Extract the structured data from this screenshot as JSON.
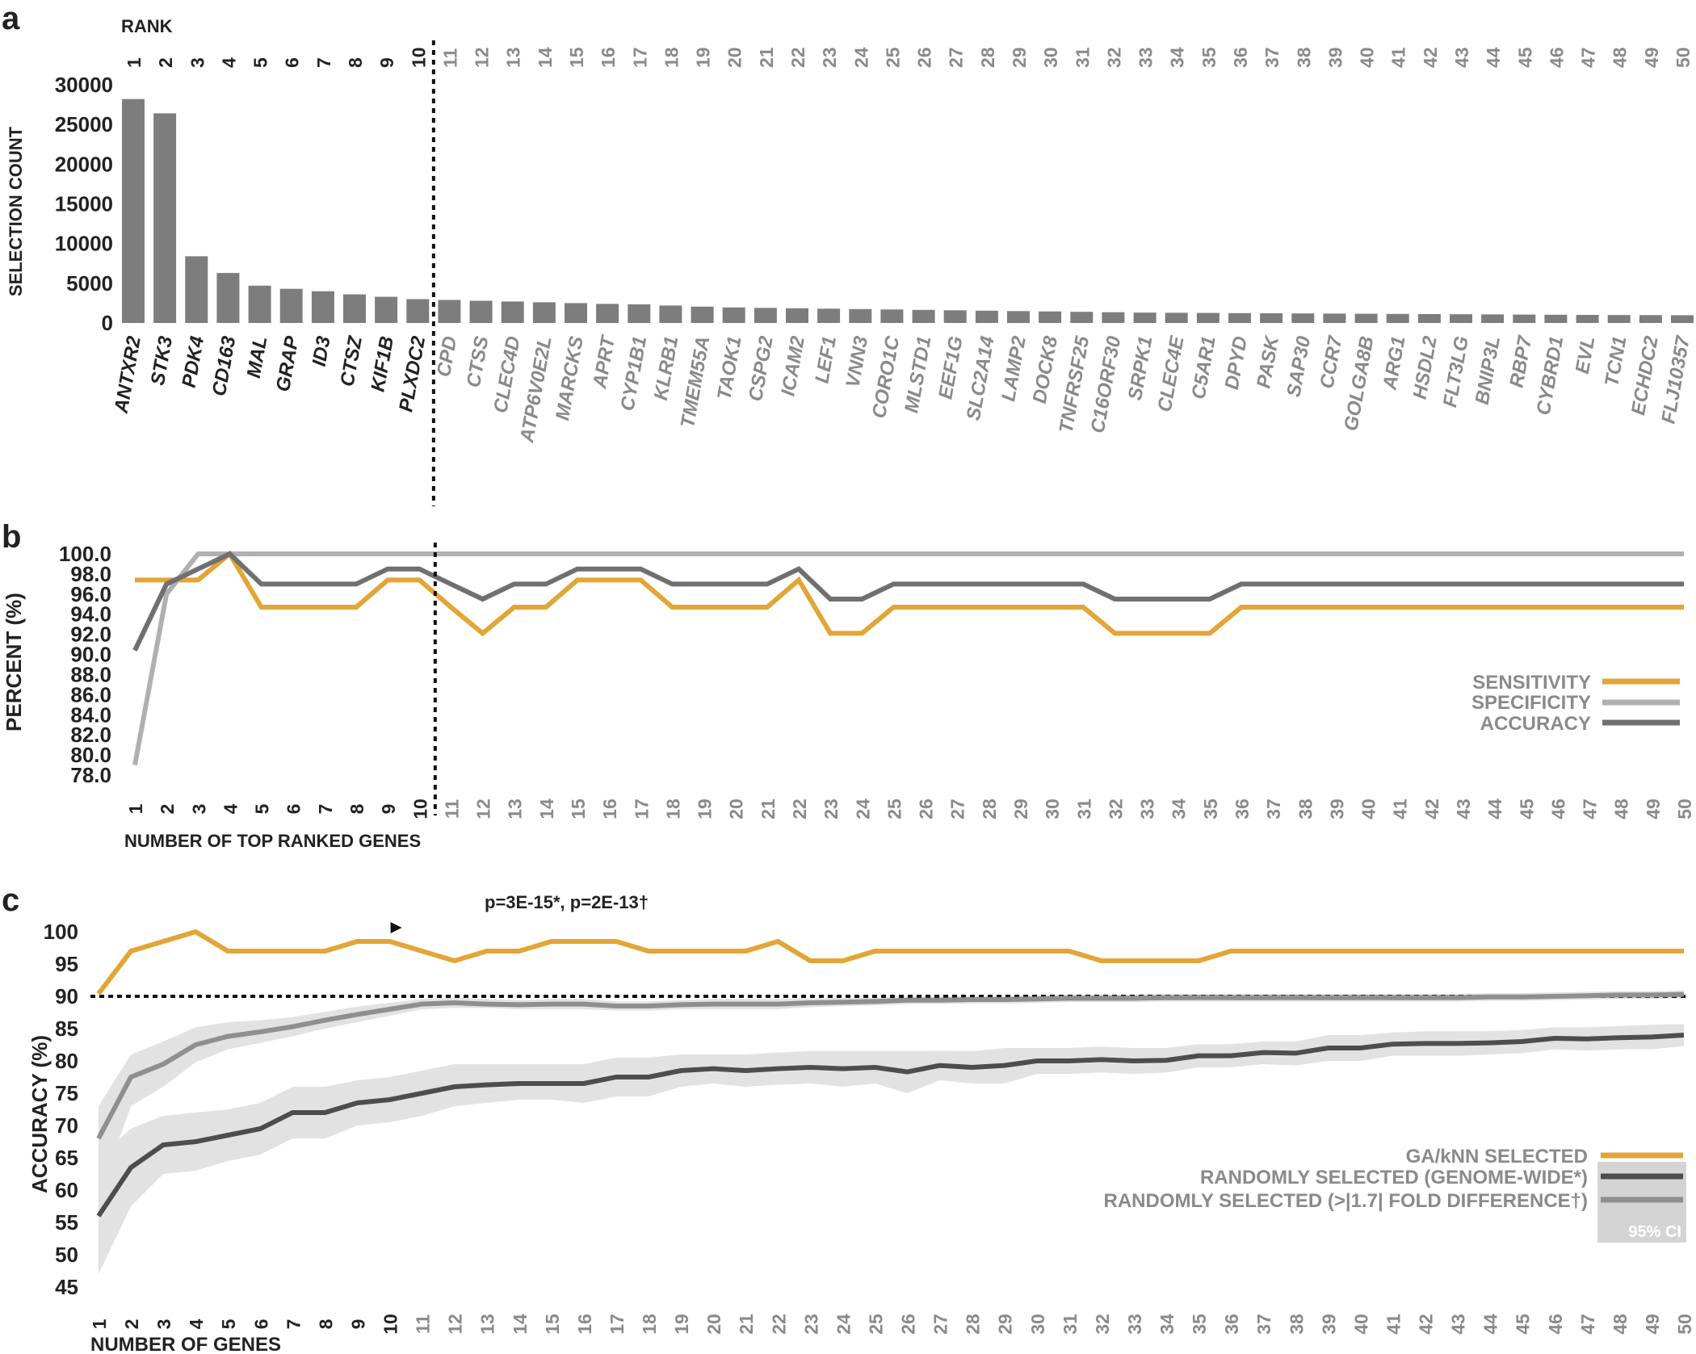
{
  "colors": {
    "bar": "#7d7d7d",
    "orange": "#e3a536",
    "light_gray": "#b0b0b0",
    "dark_gray": "#707070",
    "rand_dark": "#4d4d4d",
    "rand_mid": "#8f8f8f",
    "ci": "#e2e2e2",
    "ci_legend": "#d4d4d4",
    "gene_gray": "#8a8a8a",
    "text": "#222222"
  },
  "panels": {
    "a": {
      "letter": "a",
      "rank_title": "RANK",
      "ylabel": "SELECTION COUNT"
    },
    "b": {
      "letter": "b",
      "ylabel": "PERCENT  (%)",
      "xlabel": "NUMBER OF TOP RANKED GENES",
      "legend": [
        "SENSITIVITY",
        "SPECIFICITY",
        "ACCURACY"
      ]
    },
    "c": {
      "letter": "c",
      "ylabel": "ACCURACY (%)",
      "xlabel": "NUMBER OF GENES",
      "annotation": "p=3E-15*, p=2E-13†",
      "legend": [
        "GA/kNN SELECTED",
        "RANDOMLY SELECTED (GENOME-WIDE*)",
        "RANDOMLY SELECTED (>|1.7| FOLD DIFFERENCE†)"
      ],
      "ci_label": "95% CI"
    }
  },
  "chart_data": [
    {
      "panel": "a",
      "type": "bar",
      "title": "",
      "xlabel": "RANK",
      "ylabel": "SELECTION COUNT",
      "ylim": [
        0,
        30000
      ],
      "yticks": [
        0,
        5000,
        10000,
        15000,
        20000,
        25000,
        30000
      ],
      "ranks": [
        1,
        2,
        3,
        4,
        5,
        6,
        7,
        8,
        9,
        10,
        11,
        12,
        13,
        14,
        15,
        16,
        17,
        18,
        19,
        20,
        21,
        22,
        23,
        24,
        25,
        26,
        27,
        28,
        29,
        30,
        31,
        32,
        33,
        34,
        35,
        36,
        37,
        38,
        39,
        40,
        41,
        42,
        43,
        44,
        45,
        46,
        47,
        48,
        49,
        50
      ],
      "categories": [
        "ANTXR2",
        "STK3",
        "PDK4",
        "CD163",
        "MAL",
        "GRAP",
        "ID3",
        "CTSZ",
        "KIF1B",
        "PLXDC2",
        "CPD",
        "CTSS",
        "CLEC4D",
        "ATP6V0E2L",
        "MARCKS",
        "APRT",
        "CYP1B1",
        "KLRB1",
        "TMEM55A",
        "TAOK1",
        "CSPG2",
        "ICAM2",
        "LEF1",
        "VNN3",
        "CORO1C",
        "MLSTD1",
        "EEF1G",
        "SLC2A14",
        "LAMP2",
        "DOCK8",
        "TNFRSF25",
        "C16ORF30",
        "SRPK1",
        "CLEC4E",
        "C5AR1",
        "DPYD",
        "PASK",
        "SAP30",
        "CCR7",
        "GOLGA8B",
        "ARG1",
        "HSDL2",
        "FLT3LG",
        "BNIP3L",
        "RBP7",
        "CYBRD1",
        "EVL",
        "TCN1",
        "ECHDC2",
        "FLJ10357"
      ],
      "values": [
        28200,
        26400,
        8400,
        6300,
        4700,
        4300,
        4000,
        3600,
        3300,
        3000,
        2900,
        2800,
        2700,
        2600,
        2500,
        2400,
        2350,
        2200,
        2050,
        1950,
        1900,
        1850,
        1800,
        1750,
        1700,
        1650,
        1600,
        1550,
        1500,
        1450,
        1400,
        1350,
        1300,
        1280,
        1260,
        1240,
        1220,
        1200,
        1180,
        1160,
        1140,
        1120,
        1100,
        1080,
        1060,
        1040,
        1020,
        1000,
        990,
        980
      ],
      "top_cutoff_rank": 10
    },
    {
      "panel": "b",
      "type": "line",
      "xlabel": "NUMBER OF TOP RANKED GENES",
      "ylabel": "PERCENT  (%)",
      "ylim": [
        78,
        100
      ],
      "yticks": [
        "78.0",
        "80.0",
        "82.0",
        "84.0",
        "86.0",
        "88.0",
        "90.0",
        "92.0",
        "94.0",
        "96.0",
        "98.0",
        "100.0"
      ],
      "x": [
        1,
        2,
        3,
        4,
        5,
        6,
        7,
        8,
        9,
        10,
        11,
        12,
        13,
        14,
        15,
        16,
        17,
        18,
        19,
        20,
        21,
        22,
        23,
        24,
        25,
        26,
        27,
        28,
        29,
        30,
        31,
        32,
        33,
        34,
        35,
        36,
        37,
        38,
        39,
        40,
        41,
        42,
        43,
        44,
        45,
        46,
        47,
        48,
        49,
        50
      ],
      "series": [
        {
          "name": "SENSITIVITY",
          "color": "#e3a536",
          "values": [
            97.4,
            97.4,
            97.4,
            100,
            94.7,
            94.7,
            94.7,
            94.7,
            97.4,
            97.4,
            94.7,
            92.1,
            94.7,
            94.7,
            97.4,
            97.4,
            97.4,
            94.7,
            94.7,
            94.7,
            94.7,
            97.4,
            92.1,
            92.1,
            94.7,
            94.7,
            94.7,
            94.7,
            94.7,
            94.7,
            94.7,
            92.1,
            92.1,
            92.1,
            92.1,
            94.7,
            94.7,
            94.7,
            94.7,
            94.7,
            94.7,
            94.7,
            94.7,
            94.7,
            94.7,
            94.7,
            94.7,
            94.7,
            94.7,
            94.7
          ]
        },
        {
          "name": "SPECIFICITY",
          "color": "#b0b0b0",
          "values": [
            79,
            96,
            100,
            100,
            100,
            100,
            100,
            100,
            100,
            100,
            100,
            100,
            100,
            100,
            100,
            100,
            100,
            100,
            100,
            100,
            100,
            100,
            100,
            100,
            100,
            100,
            100,
            100,
            100,
            100,
            100,
            100,
            100,
            100,
            100,
            100,
            100,
            100,
            100,
            100,
            100,
            100,
            100,
            100,
            100,
            100,
            100,
            100,
            100,
            100
          ]
        },
        {
          "name": "ACCURACY",
          "color": "#707070",
          "values": [
            90.4,
            97,
            98.5,
            100,
            97,
            97,
            97,
            97,
            98.5,
            98.5,
            97,
            95.5,
            97,
            97,
            98.5,
            98.5,
            98.5,
            97,
            97,
            97,
            97,
            98.5,
            95.5,
            95.5,
            97,
            97,
            97,
            97,
            97,
            97,
            97,
            95.5,
            95.5,
            95.5,
            95.5,
            97,
            97,
            97,
            97,
            97,
            97,
            97,
            97,
            97,
            97,
            97,
            97,
            97,
            97,
            97
          ]
        }
      ],
      "cutoff_x": 10.5
    },
    {
      "panel": "c",
      "type": "line",
      "xlabel": "NUMBER OF GENES",
      "ylabel": "ACCURACY (%)",
      "ylim": [
        45,
        100
      ],
      "yticks": [
        45,
        50,
        55,
        60,
        65,
        70,
        75,
        80,
        85,
        90,
        95,
        100
      ],
      "reference_line": 90,
      "annotation_x": 10,
      "x": [
        1,
        2,
        3,
        4,
        5,
        6,
        7,
        8,
        9,
        10,
        11,
        12,
        13,
        14,
        15,
        16,
        17,
        18,
        19,
        20,
        21,
        22,
        23,
        24,
        25,
        26,
        27,
        28,
        29,
        30,
        31,
        32,
        33,
        34,
        35,
        36,
        37,
        38,
        39,
        40,
        41,
        42,
        43,
        44,
        45,
        46,
        47,
        48,
        49,
        50
      ],
      "series": [
        {
          "name": "GA/kNN SELECTED",
          "color": "#e3a536",
          "values": [
            90.4,
            97,
            98.5,
            100,
            97,
            97,
            97,
            97,
            98.5,
            98.5,
            97,
            95.5,
            97,
            97,
            98.5,
            98.5,
            98.5,
            97,
            97,
            97,
            97,
            98.5,
            95.5,
            95.5,
            97,
            97,
            97,
            97,
            97,
            97,
            97,
            95.5,
            95.5,
            95.5,
            95.5,
            97,
            97,
            97,
            97,
            97,
            97,
            97,
            97,
            97,
            97,
            97,
            97,
            97,
            97,
            97
          ]
        },
        {
          "name": "RANDOMLY SELECTED (GENOME-WIDE*)",
          "color": "#4d4d4d",
          "values": [
            56,
            63.5,
            67,
            67.5,
            68.5,
            69.5,
            72,
            72,
            73.5,
            74,
            75,
            76,
            76.3,
            76.5,
            76.5,
            76.5,
            77.5,
            77.5,
            78.5,
            78.8,
            78.5,
            78.8,
            79,
            78.8,
            79,
            78.3,
            79.3,
            79,
            79.3,
            80,
            80,
            80.2,
            80,
            80.1,
            80.8,
            80.8,
            81.3,
            81.2,
            82,
            82,
            82.6,
            82.7,
            82.7,
            82.8,
            83,
            83.5,
            83.4,
            83.6,
            83.7,
            84
          ],
          "ci_low": [
            47,
            57.5,
            62.5,
            63,
            64.5,
            65.5,
            68,
            68,
            70,
            70.5,
            71.5,
            73,
            73.5,
            74,
            74,
            73.5,
            74.5,
            74.5,
            76,
            76.5,
            76,
            76.3,
            76.5,
            76,
            76.5,
            75,
            77,
            76.5,
            76.5,
            78,
            78,
            78.2,
            78,
            78.2,
            79,
            79,
            79.5,
            79.3,
            80,
            80,
            80.8,
            80.8,
            80.8,
            81,
            81.2,
            81.8,
            81.6,
            81.8,
            81.8,
            82.3
          ],
          "ci_high": [
            65,
            69.5,
            71.5,
            72,
            72.5,
            73.5,
            76,
            76,
            77,
            77.5,
            78.5,
            79.5,
            79.5,
            79.5,
            79.5,
            79.5,
            80.5,
            80.5,
            81,
            81,
            81,
            81.3,
            81.5,
            81.5,
            81.5,
            81.5,
            81.6,
            81.5,
            82,
            82,
            82,
            82.2,
            82,
            82,
            82.6,
            82.6,
            83,
            83,
            84,
            84,
            84.4,
            84.6,
            84.6,
            84.6,
            84.8,
            85.2,
            85.2,
            85.4,
            85.6,
            85.7
          ]
        },
        {
          "name": "RANDOMLY SELECTED (>|1.7| FOLD DIFFERENCE†)",
          "color": "#8f8f8f",
          "values": [
            68,
            77.5,
            79.5,
            82.5,
            83.8,
            84.5,
            85.3,
            86.3,
            87.2,
            88,
            88.8,
            89,
            88.8,
            88.7,
            88.8,
            88.8,
            88.5,
            88.5,
            88.7,
            88.8,
            88.8,
            88.8,
            89,
            89.1,
            89.2,
            89.4,
            89.4,
            89.5,
            89.5,
            89.6,
            89.7,
            89.7,
            89.7,
            89.8,
            89.8,
            89.8,
            89.8,
            89.8,
            89.8,
            89.8,
            89.8,
            89.8,
            89.8,
            89.9,
            89.9,
            90,
            90.1,
            90.2,
            90.2,
            90.3
          ],
          "ci_low": [
            59,
            73,
            76,
            79.8,
            81.8,
            82.8,
            83.8,
            85,
            86,
            87,
            88,
            88.2,
            88.2,
            88,
            88,
            88,
            87.8,
            87.8,
            88,
            88,
            88,
            88,
            88.3,
            88.5,
            88.6,
            88.8,
            88.8,
            88.9,
            88.9,
            89,
            89.1,
            89.1,
            89.1,
            89.2,
            89.2,
            89.2,
            89.2,
            89.2,
            89.2,
            89.2,
            89.2,
            89.2,
            89.2,
            89.3,
            89.3,
            89.4,
            89.5,
            89.6,
            89.6,
            89.7
          ],
          "ci_high": [
            73,
            81,
            83,
            85.2,
            86,
            86.3,
            86.8,
            87.6,
            88.4,
            89,
            89.6,
            89.8,
            89.6,
            89.4,
            89.6,
            89.6,
            89.2,
            89.2,
            89.4,
            89.6,
            89.6,
            89.6,
            89.7,
            89.7,
            89.8,
            90,
            90,
            90.1,
            90.1,
            90.2,
            90.3,
            90.3,
            90.3,
            90.4,
            90.4,
            90.4,
            90.4,
            90.4,
            90.4,
            90.4,
            90.4,
            90.4,
            90.4,
            90.5,
            90.5,
            90.6,
            90.7,
            90.8,
            90.8,
            90.9
          ]
        }
      ]
    }
  ]
}
